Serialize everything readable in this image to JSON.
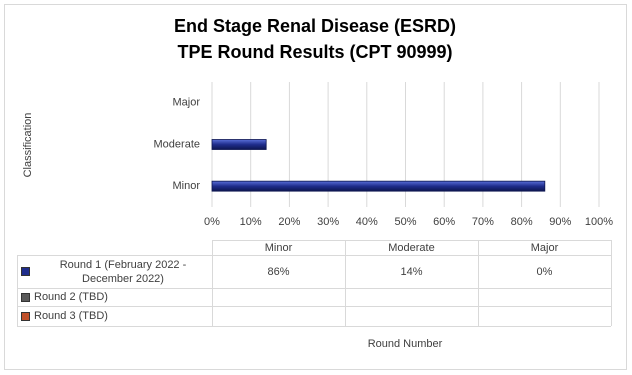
{
  "chart_data": {
    "type": "bar",
    "orientation": "horizontal",
    "title": [
      "End Stage Renal Disease (ESRD)",
      "TPE Round Results (CPT 90999)"
    ],
    "y_label": "Classification",
    "x_label": "Round Number",
    "categories": [
      "Minor",
      "Moderate",
      "Major"
    ],
    "series": [
      {
        "name": "Round 1 (February 2022 - December 2022)",
        "color": "#1f2d8c",
        "values": [
          86,
          14,
          0
        ],
        "value_labels": [
          "86%",
          "14%",
          "0%"
        ]
      },
      {
        "name": "Round 2 (TBD)",
        "color": "#595959",
        "values": [
          null,
          null,
          null
        ]
      },
      {
        "name": "Round 3 (TBD)",
        "color": "#c0502a",
        "values": [
          null,
          null,
          null
        ]
      }
    ],
    "xlim": [
      0,
      100
    ],
    "xticks": [
      {
        "value": 0,
        "label": "0%"
      },
      {
        "value": 10,
        "label": "10%"
      },
      {
        "value": 20,
        "label": "20%"
      },
      {
        "value": 30,
        "label": "30%"
      },
      {
        "value": 40,
        "label": "40%"
      },
      {
        "value": 50,
        "label": "50%"
      },
      {
        "value": 60,
        "label": "60%"
      },
      {
        "value": 70,
        "label": "70%"
      },
      {
        "value": 80,
        "label": "80%"
      },
      {
        "value": 90,
        "label": "90%"
      },
      {
        "value": 100,
        "label": "100%"
      }
    ],
    "grid": true
  }
}
